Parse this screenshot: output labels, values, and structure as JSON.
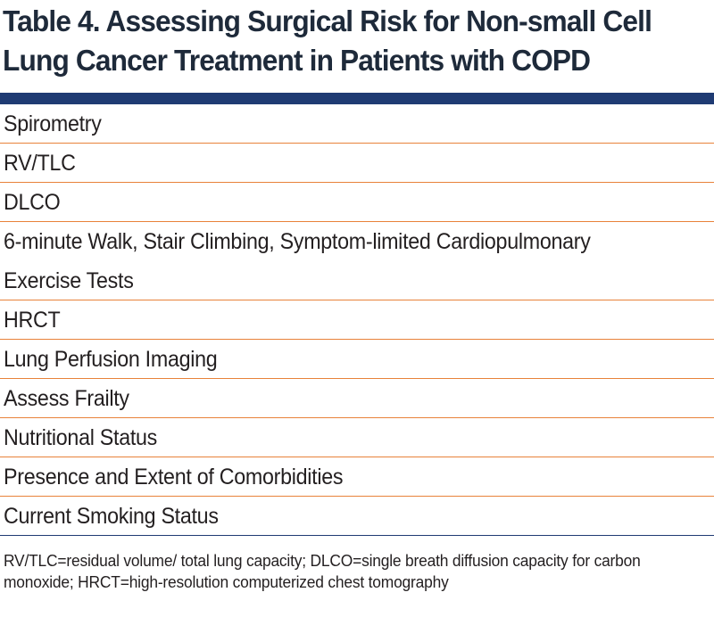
{
  "title": "Table 4. Assessing Surgical Risk for Non-small Cell Lung Cancer Treatment in Patients with COPD",
  "rows": [
    "Spirometry",
    "RV/TLC",
    "DLCO",
    "6-minute Walk, Stair Climbing, Symptom-limited Cardiopulmonary Exercise Tests",
    "HRCT",
    "Lung Perfusion Imaging",
    "Assess Frailty",
    "Nutritional Status",
    "Presence and Extent of Comorbidities",
    "Current Smoking Status"
  ],
  "footnote": "RV/TLC=residual volume/ total lung capacity;  DLCO=single breath diffusion capacity for carbon monoxide; HRCT=high-resolution computerized chest tomography",
  "colors": {
    "title_bar": "#1f3b73",
    "row_divider": "#e8823a",
    "title_text": "#1e2a3a"
  }
}
